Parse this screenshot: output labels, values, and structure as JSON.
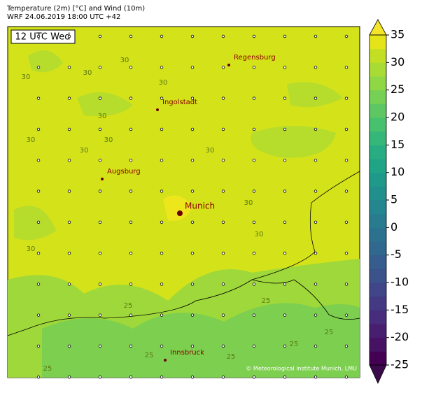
{
  "header": {
    "line1": "Temperature (2m) [°C] and Wind (10m)",
    "line2": "WRF 24.06.2019 18:00 UTC +42"
  },
  "time_label": "12 UTC Wed",
  "cities": [
    {
      "name": "Regensburg"
    },
    {
      "name": "Ingolstadt"
    },
    {
      "name": "Augsburg"
    },
    {
      "name": "Munich"
    },
    {
      "name": "Innsbruck"
    }
  ],
  "contour_labels": [
    30,
    30,
    30,
    30,
    30,
    30,
    30,
    30,
    30,
    30,
    30,
    30,
    25,
    25,
    25,
    25,
    25,
    25,
    25
  ],
  "credit": "© Meteorological Institute Munich, LMU",
  "colorbar": {
    "lim": [
      -25,
      35
    ],
    "step": 2.5,
    "ticks": [
      -25,
      -20,
      -15,
      -10,
      -5,
      0,
      5,
      10,
      15,
      20,
      25,
      30,
      35
    ],
    "colors": [
      "#440154",
      "#471164",
      "#481f70",
      "#472d7b",
      "#443a83",
      "#404688",
      "#3b528b",
      "#365d8d",
      "#31688e",
      "#2c728e",
      "#287c8e",
      "#24868e",
      "#21908d",
      "#1f9a8a",
      "#20a486",
      "#27ad81",
      "#35b779",
      "#47c16e",
      "#5dc863",
      "#75d054",
      "#8fd744",
      "#a8db34",
      "#c2df23",
      "#e4e419"
    ],
    "under_color": "#3a0a4a",
    "over_color": "#f5e52a"
  }
}
